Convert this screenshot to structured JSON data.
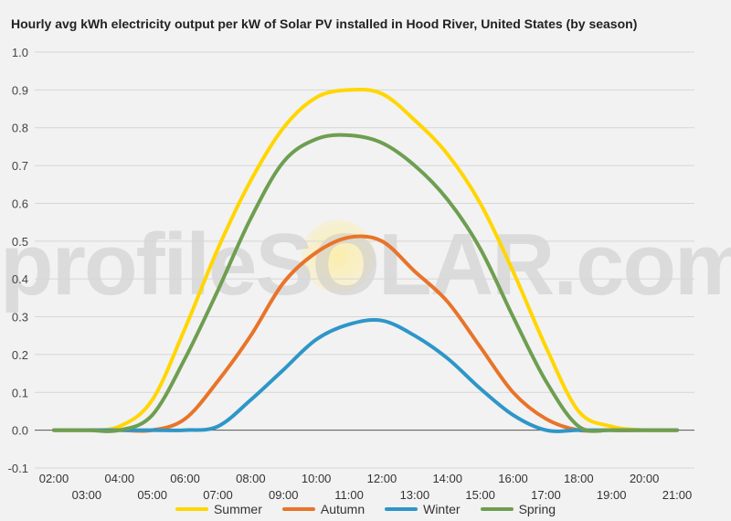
{
  "chart_data": {
    "type": "line",
    "title": "Hourly avg kWh electricity output per kW of Solar PV installed in Hood River, United States (by season)",
    "xlabel": "",
    "ylabel": "",
    "ylim": [
      -0.1,
      1.0
    ],
    "y_ticks": [
      "1.0",
      "0.9",
      "0.8",
      "0.7",
      "0.6",
      "0.5",
      "0.4",
      "0.3",
      "0.2",
      "0.1",
      "0.0",
      "-0.1"
    ],
    "x": [
      "02:00",
      "03:00",
      "04:00",
      "05:00",
      "06:00",
      "07:00",
      "08:00",
      "09:00",
      "10:00",
      "11:00",
      "12:00",
      "13:00",
      "14:00",
      "15:00",
      "16:00",
      "17:00",
      "18:00",
      "19:00",
      "20:00",
      "21:00"
    ],
    "grid": true,
    "legend_position": "bottom",
    "series": [
      {
        "name": "Summer",
        "color": "#ffd600",
        "values": [
          0,
          0,
          0.01,
          0.08,
          0.27,
          0.48,
          0.66,
          0.8,
          0.88,
          0.9,
          0.89,
          0.82,
          0.73,
          0.6,
          0.42,
          0.22,
          0.05,
          0.01,
          0,
          0
        ]
      },
      {
        "name": "Autumn",
        "color": "#e8742a",
        "values": [
          0,
          0,
          0,
          0,
          0.03,
          0.13,
          0.25,
          0.39,
          0.47,
          0.51,
          0.5,
          0.42,
          0.34,
          0.22,
          0.1,
          0.03,
          0,
          0,
          0,
          0
        ]
      },
      {
        "name": "Winter",
        "color": "#2e96c8",
        "values": [
          0,
          0,
          0,
          0,
          0,
          0.01,
          0.08,
          0.16,
          0.24,
          0.28,
          0.29,
          0.25,
          0.19,
          0.11,
          0.04,
          0,
          0,
          0,
          0,
          0
        ]
      },
      {
        "name": "Spring",
        "color": "#6e9e50",
        "values": [
          0,
          0,
          0,
          0.04,
          0.19,
          0.37,
          0.56,
          0.71,
          0.77,
          0.78,
          0.76,
          0.7,
          0.61,
          0.48,
          0.3,
          0.13,
          0.01,
          0,
          0,
          0
        ]
      }
    ]
  },
  "watermark": "profileSOLAR.com"
}
